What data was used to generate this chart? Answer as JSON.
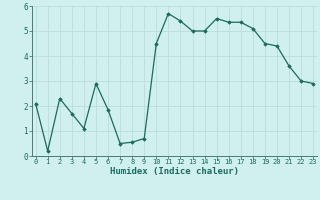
{
  "x": [
    0,
    1,
    2,
    3,
    4,
    5,
    6,
    7,
    8,
    9,
    10,
    11,
    12,
    13,
    14,
    15,
    16,
    17,
    18,
    19,
    20,
    21,
    22,
    23
  ],
  "y": [
    2.1,
    0.2,
    2.3,
    1.7,
    1.1,
    2.9,
    1.85,
    0.5,
    0.55,
    0.7,
    4.5,
    5.7,
    5.4,
    5.0,
    5.0,
    5.5,
    5.35,
    5.35,
    5.1,
    4.5,
    4.4,
    3.6,
    3.0,
    2.9
  ],
  "xlabel": "Humidex (Indice chaleur)",
  "ylim": [
    0,
    6
  ],
  "yticks": [
    0,
    1,
    2,
    3,
    4,
    5,
    6
  ],
  "xticks": [
    0,
    1,
    2,
    3,
    4,
    5,
    6,
    7,
    8,
    9,
    10,
    11,
    12,
    13,
    14,
    15,
    16,
    17,
    18,
    19,
    20,
    21,
    22,
    23
  ],
  "line_color": "#1a6b5e",
  "marker_color": "#1a6b5e",
  "bg_color": "#cff0ee",
  "grid_color": "#c0deda",
  "axis_color": "#4a7a70",
  "tick_color": "#1a6b5e"
}
